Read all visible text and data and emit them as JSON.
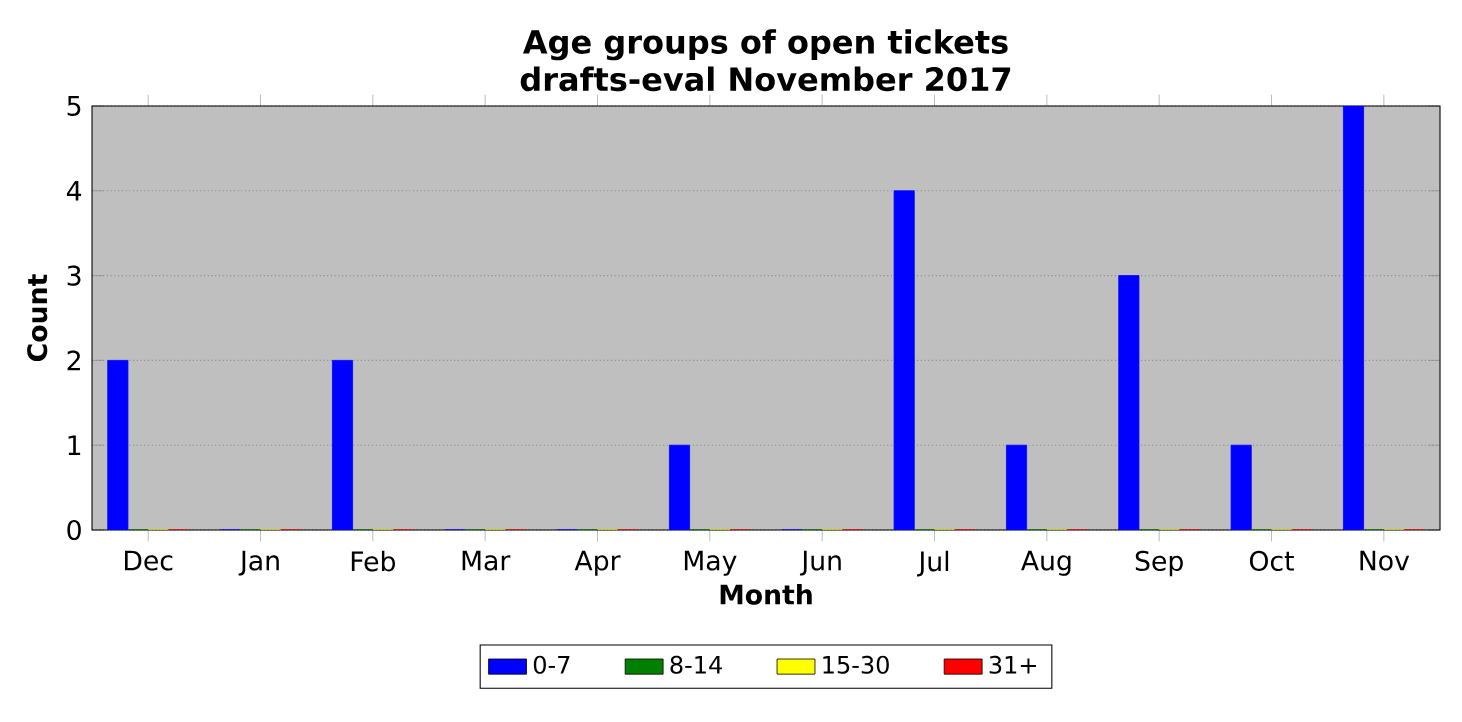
{
  "chart_data": {
    "type": "bar",
    "title": "Age groups of open tickets",
    "subtitle": "drafts-eval November 2017",
    "xlabel": "Month",
    "ylabel": "Count",
    "categories": [
      "Dec",
      "Jan",
      "Feb",
      "Mar",
      "Apr",
      "May",
      "Jun",
      "Jul",
      "Aug",
      "Sep",
      "Oct",
      "Nov"
    ],
    "series": [
      {
        "name": "0-7",
        "color": "#0000ff",
        "values": [
          2,
          0,
          2,
          0,
          0,
          1,
          0,
          4,
          1,
          3,
          1,
          5
        ]
      },
      {
        "name": "8-14",
        "color": "#008000",
        "values": [
          0,
          0,
          0,
          0,
          0,
          0,
          0,
          0,
          0,
          0,
          0,
          0
        ]
      },
      {
        "name": "15-30",
        "color": "#ffff00",
        "values": [
          0,
          0,
          0,
          0,
          0,
          0,
          0,
          0,
          0,
          0,
          0,
          0
        ]
      },
      {
        "name": "31+",
        "color": "#ff0000",
        "values": [
          0,
          0,
          0,
          0,
          0,
          0,
          0,
          0,
          0,
          0,
          0,
          0
        ]
      }
    ],
    "ylim": [
      0,
      5
    ],
    "yticks": [
      0,
      1,
      2,
      3,
      4,
      5
    ],
    "grid": "y",
    "legend": "bottom"
  }
}
